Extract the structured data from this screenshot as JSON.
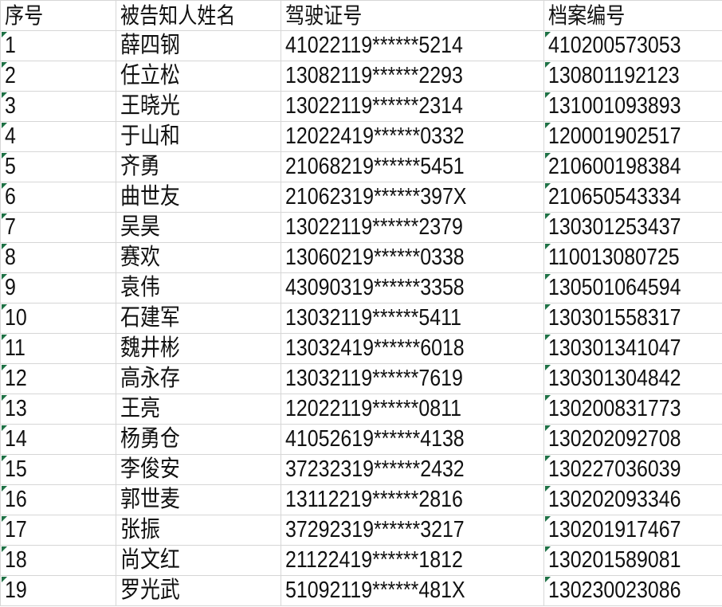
{
  "columns": [
    "序号",
    "被告知人姓名",
    "驾驶证号",
    "档案编号"
  ],
  "marker_color": "#1e7145",
  "rows": [
    [
      "1",
      "薛四钢",
      "41022119******5214",
      "410200573053"
    ],
    [
      "2",
      "任立松",
      "13082119******2293",
      "130801192123"
    ],
    [
      "3",
      "王晓光",
      "13022119******2314",
      "131001093893"
    ],
    [
      "4",
      "于山和",
      "12022419******0332",
      "120001902517"
    ],
    [
      "5",
      "齐勇",
      "21068219******5451",
      "210600198384"
    ],
    [
      "6",
      "曲世友",
      "21062319******397X",
      "210650543334"
    ],
    [
      "7",
      "吴昊",
      "13022119******2379",
      "130301253437"
    ],
    [
      "8",
      "赛欢",
      "13060219******0338",
      "110013080725"
    ],
    [
      "9",
      "袁伟",
      "43090319******3358",
      "130501064594"
    ],
    [
      "10",
      "石建军",
      "13032119******5411",
      "130301558317"
    ],
    [
      "11",
      "魏井彬",
      "13032419******6018",
      "130301341047"
    ],
    [
      "12",
      "高永存",
      "13032119******7619",
      "130301304842"
    ],
    [
      "13",
      "王亮",
      "12022119******0811",
      "130200831773"
    ],
    [
      "14",
      "杨勇仓",
      "41052619******4138",
      "130202092708"
    ],
    [
      "15",
      "李俊安",
      "37232319******2432",
      "130227036039"
    ],
    [
      "16",
      "郭世麦",
      "13112219******2816",
      "130202093346"
    ],
    [
      "17",
      "张振",
      "37292319******3217",
      "130201917467"
    ],
    [
      "18",
      "尚文红",
      "21122419******1812",
      "130201589081"
    ],
    [
      "19",
      "罗光武",
      "51092119******481X",
      "130230023086"
    ]
  ]
}
